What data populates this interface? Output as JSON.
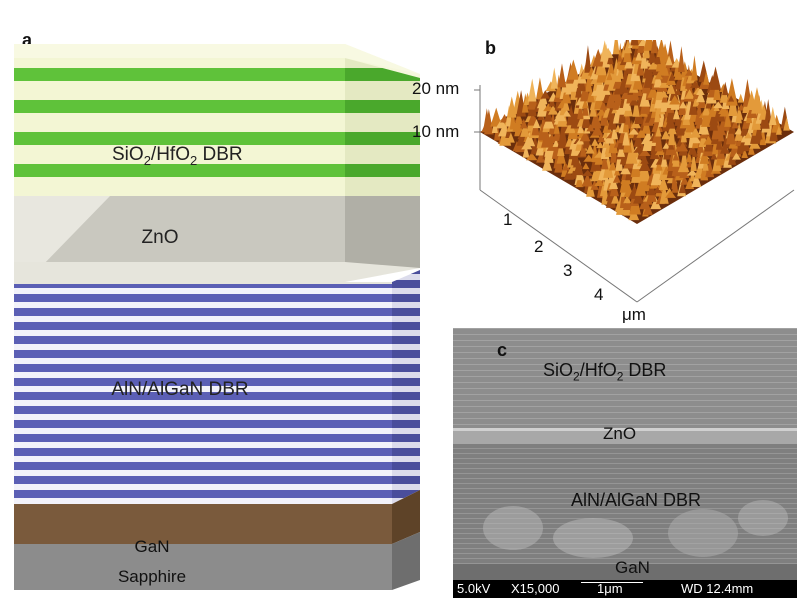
{
  "panels": {
    "a": {
      "letter": "a",
      "layers": {
        "dbr_top_main": "SiO",
        "dbr_top_sub": "2",
        "dbr_top_mid": "/HfO",
        "dbr_top_sub2": "2",
        "dbr_top_end": " DBR",
        "zno": "ZnO",
        "dbr_bottom": "AlN/AlGaN DBR",
        "gan": "GaN",
        "sapphire": "Sapphire"
      }
    },
    "b": {
      "letter": "b",
      "z_ticks": [
        "20 nm",
        "10 nm"
      ],
      "x_ticks": [
        "1",
        "2",
        "3",
        "4"
      ],
      "x_unit": "μm"
    },
    "c": {
      "letter": "c",
      "labels": {
        "dbr_top_main": "SiO",
        "dbr_top_sub": "2",
        "dbr_top_mid": "/HfO",
        "dbr_top_sub2": "2",
        "dbr_top_end": " DBR",
        "zno": "ZnO",
        "dbr_bottom": "AlN/AlGaN DBR",
        "gan": "GaN"
      },
      "info_bar": {
        "voltage": "5.0kV",
        "magnification": "X15,000",
        "scale": "1μm",
        "wd": "WD 12.4mm"
      }
    }
  },
  "colors": {
    "green_stripe": "#5fc23a",
    "light_stripe": "#f3f6d4",
    "zno": "#c9c8bf",
    "blue_stripe": "#5b5fb5",
    "white_stripe": "#f2f2fa",
    "gan": "#7a5a3c",
    "sapphire": "#8c8c8c",
    "afm_peak": "#d9842a",
    "afm_base": "#6b2e0c"
  }
}
